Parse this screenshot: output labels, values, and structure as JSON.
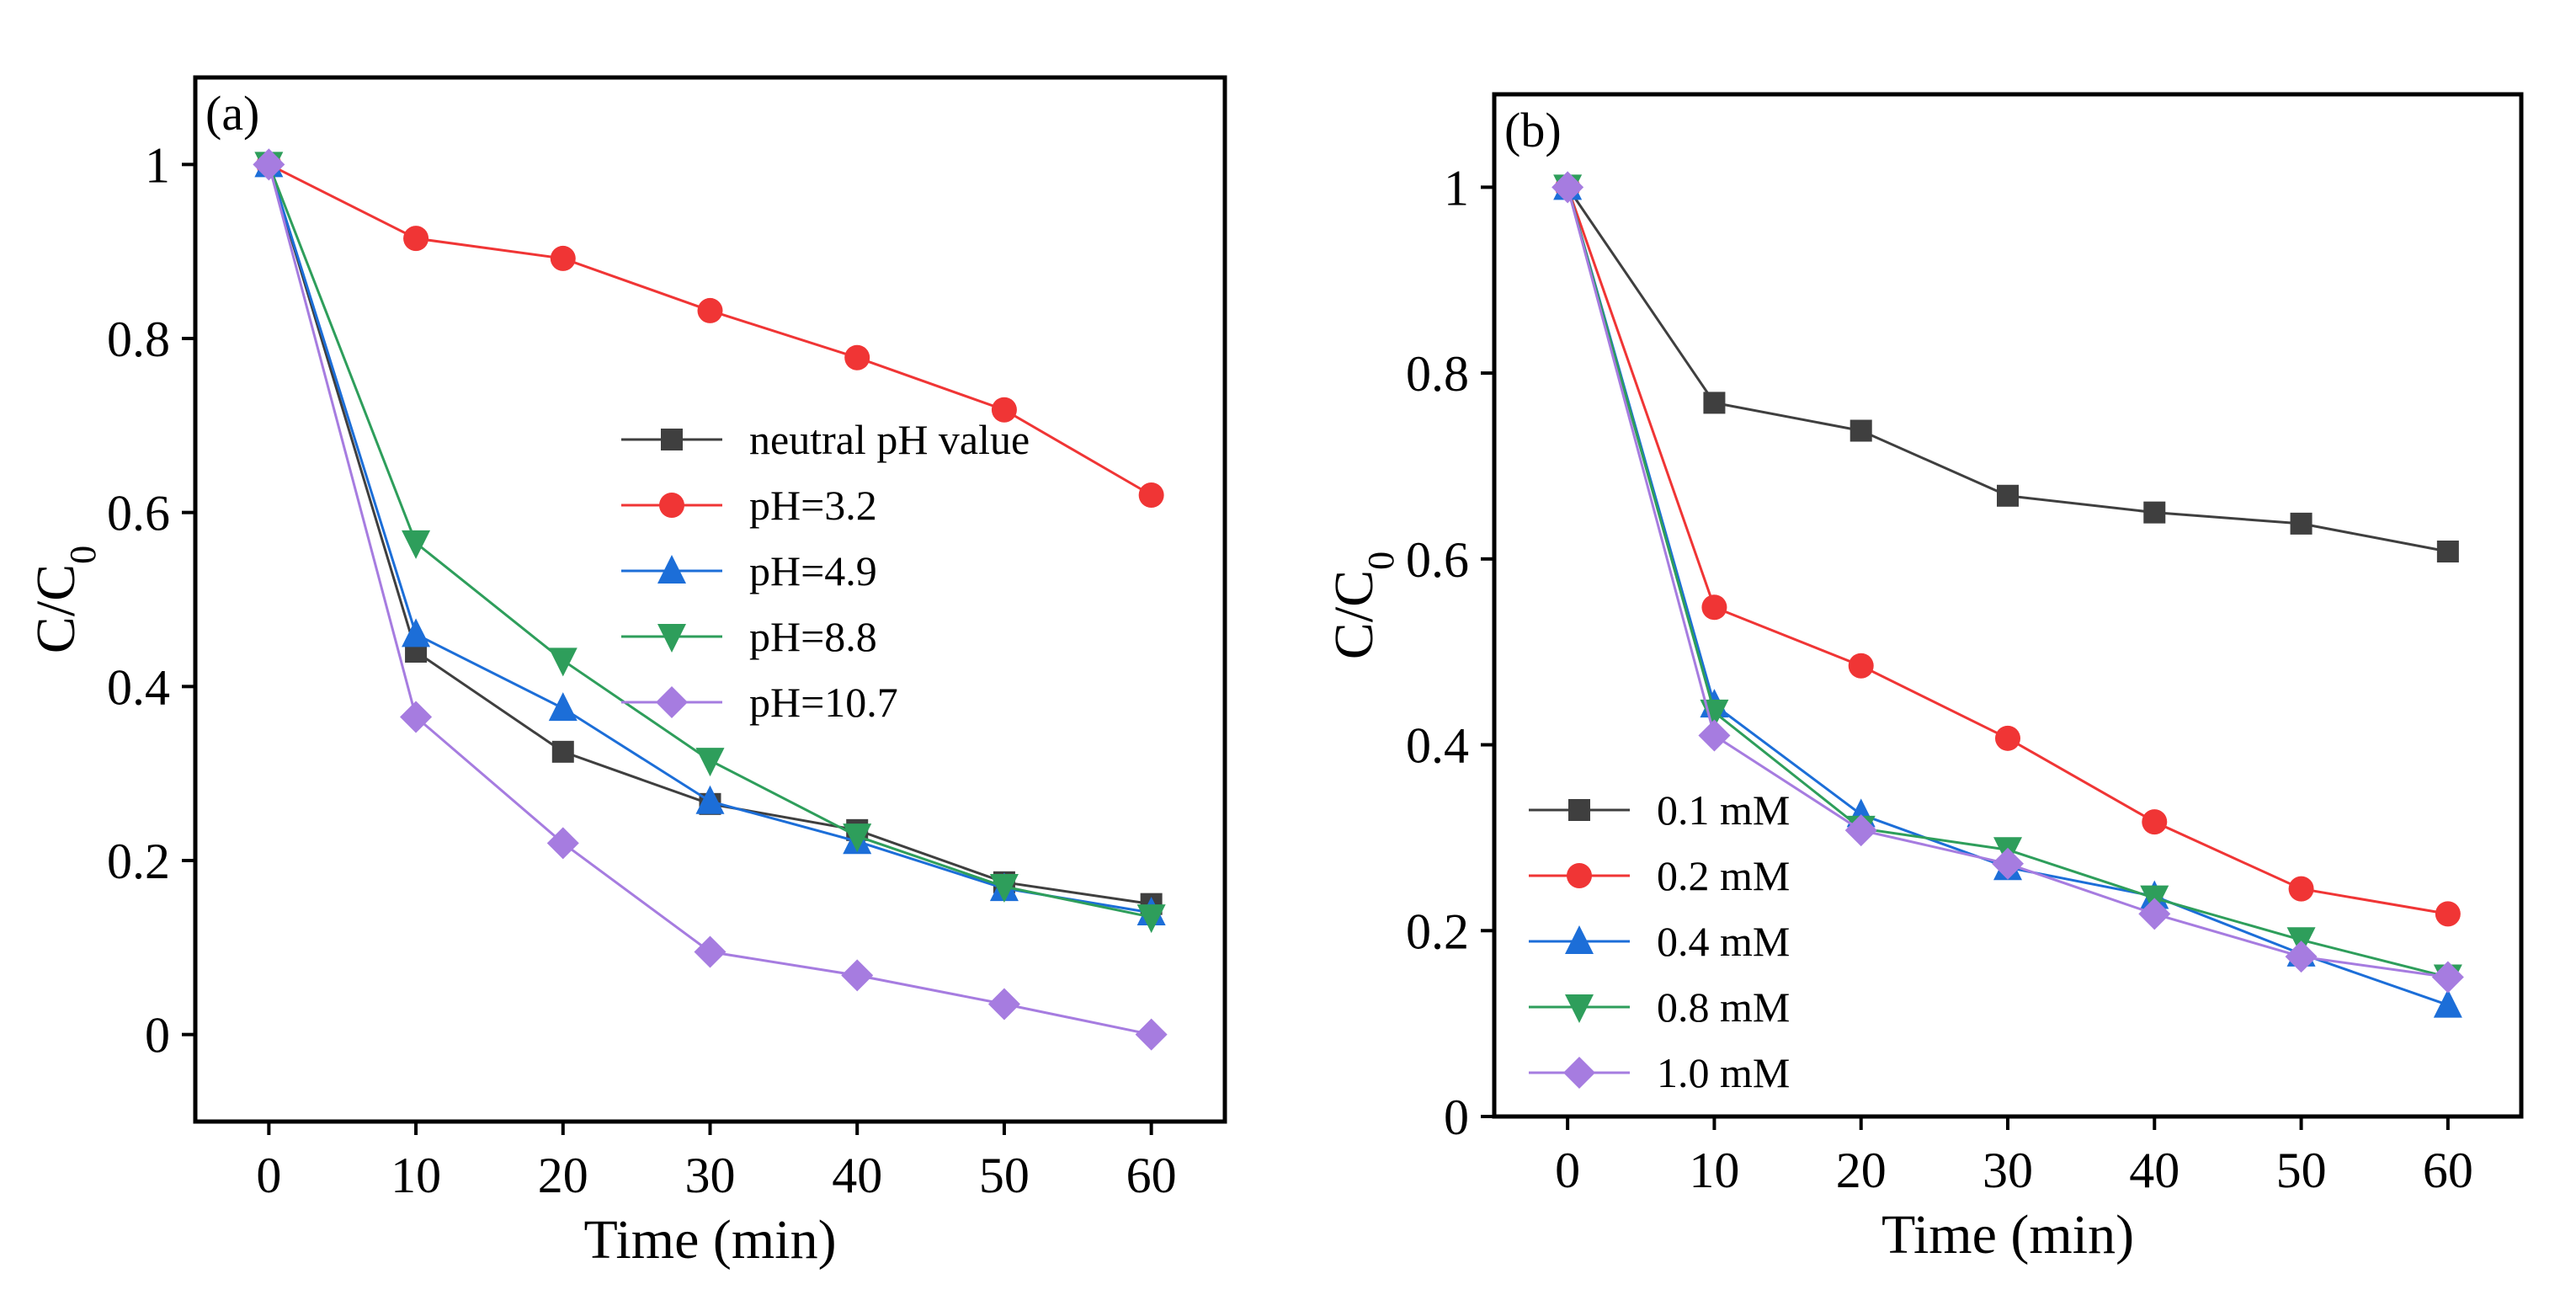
{
  "colors": {
    "neutral": "#3f3f3f",
    "red": "#f03535",
    "blue": "#1c6ed8",
    "green": "#2e9e5b",
    "purple": "#a67ce0"
  },
  "chart_data": [
    {
      "type": "line",
      "panel_label": "(a)",
      "xlabel": "Time (min)",
      "ylabel": "C/C",
      "ylabel_sub": "0",
      "xlim": [
        -5,
        65
      ],
      "ylim": [
        -0.1,
        1.1
      ],
      "xticks": [
        0,
        10,
        20,
        30,
        40,
        50,
        60
      ],
      "yticks": [
        0,
        0.2,
        0.4,
        0.6,
        0.8,
        1
      ],
      "ytick_labels": [
        "0",
        "0.2",
        "0.4",
        "0.6",
        "0.8",
        "1"
      ],
      "legend_position": "center-right",
      "x": [
        0,
        10,
        20,
        30,
        40,
        50,
        60
      ],
      "series": [
        {
          "name": "neutral pH value",
          "marker": "square",
          "color": "#3f3f3f",
          "values": [
            1.0,
            0.44,
            0.325,
            0.265,
            0.235,
            0.175,
            0.15
          ]
        },
        {
          "name": "pH=3.2",
          "marker": "circle",
          "color": "#f03535",
          "values": [
            1.0,
            0.915,
            0.892,
            0.832,
            0.778,
            0.718,
            0.62
          ]
        },
        {
          "name": "pH=4.9",
          "marker": "triangle-up",
          "color": "#1c6ed8",
          "values": [
            1.0,
            0.46,
            0.375,
            0.268,
            0.222,
            0.168,
            0.14
          ]
        },
        {
          "name": "pH=8.8",
          "marker": "triangle-down",
          "color": "#2e9e5b",
          "values": [
            1.0,
            0.565,
            0.43,
            0.315,
            0.228,
            0.17,
            0.135
          ]
        },
        {
          "name": "pH=10.7",
          "marker": "diamond",
          "color": "#a67ce0",
          "values": [
            1.0,
            0.365,
            0.22,
            0.095,
            0.068,
            0.035,
            0.0
          ]
        }
      ]
    },
    {
      "type": "line",
      "panel_label": "(b)",
      "xlabel": "Time (min)",
      "ylabel": "C/C",
      "ylabel_sub": "0",
      "xlim": [
        -5,
        65
      ],
      "ylim": [
        0,
        1.1
      ],
      "xticks": [
        0,
        10,
        20,
        30,
        40,
        50,
        60
      ],
      "yticks": [
        0,
        0.2,
        0.4,
        0.6,
        0.8,
        1
      ],
      "ytick_labels": [
        "0",
        "0.2",
        "0.4",
        "0.6",
        "0.8",
        "1"
      ],
      "legend_position": "bottom-left",
      "x": [
        0,
        10,
        20,
        30,
        40,
        50,
        60
      ],
      "series": [
        {
          "name": "0.1 mM",
          "marker": "square",
          "color": "#3f3f3f",
          "values": [
            1.0,
            0.768,
            0.738,
            0.668,
            0.65,
            0.638,
            0.608
          ]
        },
        {
          "name": "0.2 mM",
          "marker": "circle",
          "color": "#f03535",
          "values": [
            1.0,
            0.548,
            0.485,
            0.407,
            0.317,
            0.245,
            0.218
          ]
        },
        {
          "name": "0.4 mM",
          "marker": "triangle-up",
          "color": "#1c6ed8",
          "values": [
            1.0,
            0.443,
            0.325,
            0.268,
            0.237,
            0.175,
            0.12
          ]
        },
        {
          "name": "0.8 mM",
          "marker": "triangle-down",
          "color": "#2e9e5b",
          "values": [
            1.0,
            0.435,
            0.31,
            0.287,
            0.235,
            0.19,
            0.15
          ]
        },
        {
          "name": "1.0 mM",
          "marker": "diamond",
          "color": "#a67ce0",
          "values": [
            1.0,
            0.41,
            0.308,
            0.272,
            0.218,
            0.172,
            0.15
          ]
        }
      ]
    }
  ]
}
